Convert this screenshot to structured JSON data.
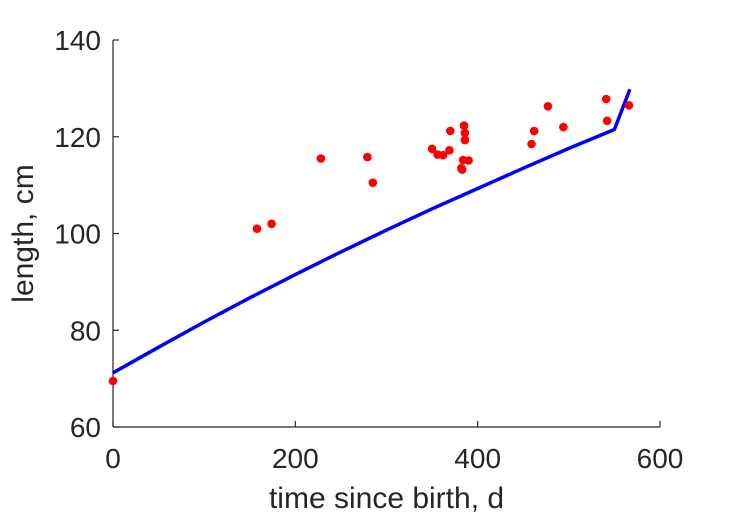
{
  "chart_data": {
    "type": "scatter",
    "xlabel": "time since birth, d",
    "ylabel": "length, cm",
    "xlim": [
      0,
      600
    ],
    "ylim": [
      60,
      140
    ],
    "xticks": [
      0,
      200,
      400,
      600
    ],
    "yticks": [
      60,
      80,
      100,
      120,
      140
    ],
    "xtick_labels": [
      "0",
      "200",
      "400",
      "600"
    ],
    "ytick_labels": [
      "60",
      "80",
      "100",
      "120",
      "140"
    ],
    "grid": false,
    "series": [
      {
        "kind": "points",
        "color": "#ff0000",
        "points": [
          [
            0,
            69.5
          ],
          [
            158,
            101
          ],
          [
            174,
            102
          ],
          [
            228,
            115.5
          ],
          [
            279,
            115.8
          ],
          [
            285,
            110.5
          ],
          [
            350,
            117.5
          ],
          [
            356,
            116.3
          ],
          [
            362,
            116.2
          ],
          [
            369,
            117.2
          ],
          [
            370,
            121.2
          ],
          [
            382,
            113.5
          ],
          [
            383,
            113.2
          ],
          [
            384,
            115.2
          ],
          [
            385,
            122.3
          ],
          [
            386,
            120.8
          ],
          [
            386,
            119.3
          ],
          [
            390,
            115.1
          ],
          [
            459,
            118.5
          ],
          [
            462,
            121.2
          ],
          [
            477,
            126.3
          ],
          [
            494,
            122.0
          ],
          [
            541,
            127.8
          ],
          [
            542,
            123.3
          ],
          [
            566,
            126.5
          ]
        ]
      },
      {
        "kind": "curve",
        "color": "#0000ff",
        "x": [
          0,
          50,
          100,
          150,
          200,
          250,
          300,
          350,
          400,
          450,
          500,
          550,
          567
        ],
        "y": [
          71.2,
          76.5,
          81.7,
          86.7,
          91.5,
          96.2,
          100.7,
          105.1,
          109.3,
          113.5,
          117.6,
          121.5,
          129.8
        ]
      }
    ]
  }
}
